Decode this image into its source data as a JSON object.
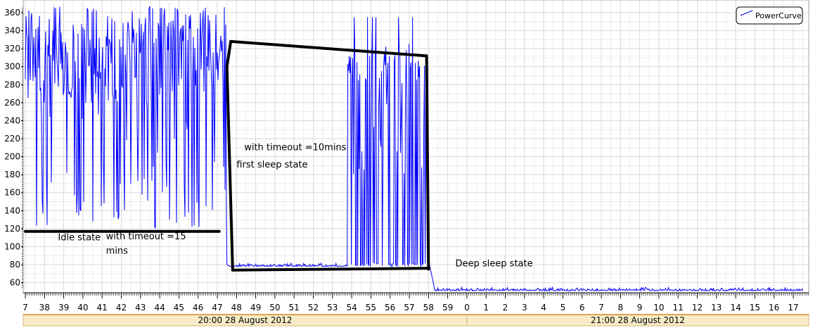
{
  "chart_data": {
    "type": "line",
    "title": "",
    "xlabel": "",
    "ylabel": "",
    "ylim": [
      50,
      367
    ],
    "xlim": [
      "20:37",
      "21:17.5"
    ],
    "grid": true,
    "legend": "top-right",
    "y_ticks": [
      60,
      80,
      100,
      120,
      140,
      160,
      180,
      200,
      220,
      240,
      260,
      280,
      300,
      320,
      340,
      360
    ],
    "x_ticks": [
      "7",
      "38",
      "39",
      "40",
      "41",
      "42",
      "43",
      "44",
      "45",
      "46",
      "47",
      "48",
      "49",
      "50",
      "51",
      "52",
      "53",
      "54",
      "55",
      "56",
      "57",
      "58",
      "59",
      "0",
      "1",
      "2",
      "3",
      "4",
      "5",
      "6",
      "7",
      "8",
      "9",
      "10",
      "11",
      "12",
      "13",
      "14",
      "15",
      "16",
      "17"
    ],
    "date_bands": [
      {
        "label": "20:00 28 August 2012",
        "from": "20:37",
        "to": "21:00"
      },
      {
        "label": "21:00 28 August 2012",
        "from": "21:00",
        "to": "21:17.5"
      }
    ],
    "series": [
      {
        "name": "PowerCurve",
        "color": "#0000ff",
        "segments": [
          {
            "from": "20:37",
            "to": "20:47.5",
            "min": 120,
            "max": 367,
            "state": "idle"
          },
          {
            "from": "20:47.5",
            "to": "20:53.8",
            "min": 78,
            "max": 82,
            "state": "first sleep"
          },
          {
            "from": "20:53.8",
            "to": "20:58",
            "min": 78,
            "max": 355,
            "state": "first sleep spikes"
          },
          {
            "from": "20:58",
            "to": "20:58.3",
            "min": 55,
            "max": 85,
            "state": "transition"
          },
          {
            "from": "20:58.3",
            "to": "21:17.5",
            "min": 51,
            "max": 55,
            "state": "deep sleep"
          }
        ]
      }
    ],
    "annotations": [
      {
        "text": "Idle state",
        "x": "20:38.7",
        "y": 107
      },
      {
        "text": "with timeout =15",
        "x": "20:41.2",
        "y": 108
      },
      {
        "text": "mins",
        "x": "20:41.2",
        "y": 92
      },
      {
        "text": "first sleep state",
        "x": "20:48",
        "y": 188
      },
      {
        "text": "with timeout =10mins",
        "x": "20:48.4",
        "y": 207
      },
      {
        "text": "Deep sleep state",
        "x": "20:59.4",
        "y": 78
      }
    ],
    "overlay_lines": [
      {
        "from": [
          "20:37",
          117
        ],
        "to": [
          "20:47.1",
          117
        ]
      },
      {
        "from": [
          "20:47.7",
          328
        ],
        "to": [
          "20:57.9",
          312
        ]
      },
      {
        "from": [
          "20:57.9",
          312
        ],
        "to": [
          "20:58",
          75
        ]
      },
      {
        "from": [
          "20:47.8",
          74
        ],
        "to": [
          "20:58",
          76
        ]
      },
      {
        "from": [
          "20:47.7",
          328
        ],
        "to": [
          "20:47.5",
          300
        ]
      },
      {
        "from": [
          "20:47.5",
          300
        ],
        "to": [
          "20:47.8",
          74
        ]
      }
    ]
  }
}
